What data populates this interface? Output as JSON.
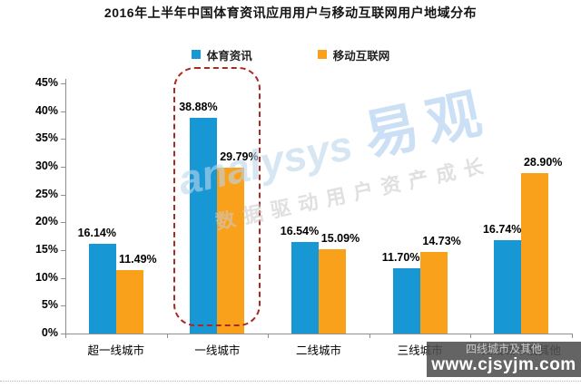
{
  "title": "2016年上半年中国体育资讯应用用户与移动互联网用户地域分布",
  "legend": [
    {
      "label": "体育资讯",
      "color": "#1897d5"
    },
    {
      "label": "移动互联网",
      "color": "#f9a11b"
    }
  ],
  "chart_data": {
    "type": "bar",
    "title": "2016年上半年中国体育资讯应用用户与移动互联网用户地域分布",
    "categories": [
      "超一线城市",
      "一线城市",
      "二线城市",
      "三线城市",
      "四线城市及其他"
    ],
    "series": [
      {
        "name": "体育资讯",
        "color": "#1897d5",
        "values": [
          16.14,
          38.88,
          16.54,
          11.7,
          16.74
        ]
      },
      {
        "name": "移动互联网",
        "color": "#f9a11b",
        "values": [
          11.49,
          29.79,
          15.09,
          14.73,
          28.9
        ]
      }
    ],
    "data_labels": [
      [
        "16.14%",
        "38.88%",
        "16.54%",
        "11.70%",
        "16.74%"
      ],
      [
        "11.49%",
        "29.79%",
        "15.09%",
        "14.73%",
        "28.90%"
      ]
    ],
    "xlabel": "",
    "ylabel": "",
    "y_ticks": [
      "0%",
      "5%",
      "10%",
      "15%",
      "20%",
      "25%",
      "30%",
      "35%",
      "40%",
      "45%"
    ],
    "ylim": [
      0,
      45
    ],
    "grid": false,
    "legend_position": "top",
    "highlight": {
      "category": "一线城市",
      "group_index": 1,
      "style": "dashed-rounded-box",
      "color": "#a92a22"
    }
  },
  "watermark": {
    "brand_script": "analysys",
    "brand_name": "易观",
    "tagline": "数据驱动用户资产成长"
  },
  "site_watermark": {
    "url": "www.cjsyjm.com"
  }
}
